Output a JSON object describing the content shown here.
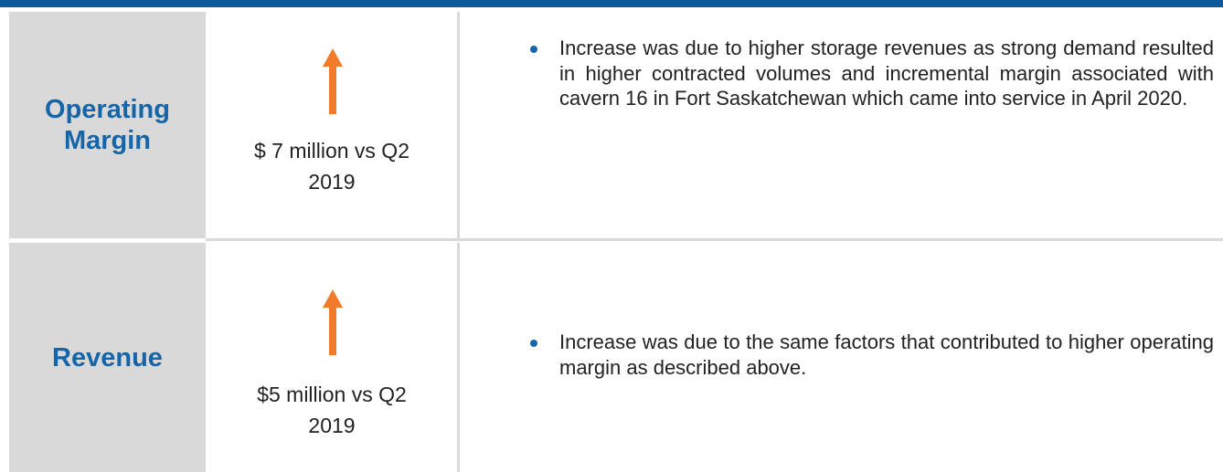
{
  "rows": [
    {
      "label": "Operating Margin",
      "change": "$ 7 million vs Q2 2019",
      "note": "Increase was due to higher storage revenues as strong demand resulted in higher contracted volumes and incremental margin associated with cavern 16 in Fort Saskatchewan which came into service in April 2020."
    },
    {
      "label": "Revenue",
      "change": "$5 million vs Q2 2019",
      "note": "Increase was due to the same factors that contributed to higher operating margin as described above."
    }
  ]
}
